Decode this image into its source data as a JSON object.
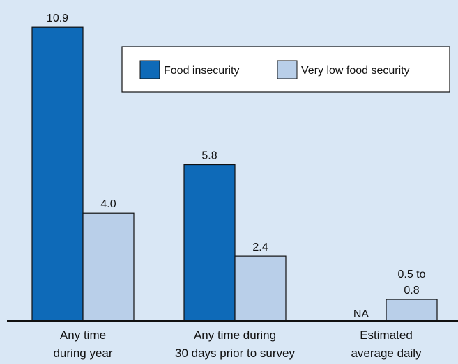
{
  "chart_data": {
    "type": "bar",
    "categories": [
      [
        "Any time",
        "during year"
      ],
      [
        "Any time during",
        "30 days prior to survey"
      ],
      [
        "Estimated",
        "average daily"
      ]
    ],
    "series": [
      {
        "name": "Food insecurity",
        "color": "#0e6ab8",
        "values": [
          10.9,
          5.8,
          null
        ],
        "data_labels": [
          "10.9",
          "5.8",
          "NA"
        ]
      },
      {
        "name": "Very low food security",
        "color": "#b9cfe9",
        "values": [
          4.0,
          2.4,
          0.8
        ],
        "range_low": [
          null,
          null,
          0.5
        ],
        "data_labels": [
          "4.0",
          "2.4",
          "0.5 to 0.8"
        ]
      }
    ],
    "title": "",
    "xlabel": "",
    "ylabel": "",
    "ylim": [
      0,
      10.9
    ],
    "grid": false,
    "legend": "top-right"
  }
}
